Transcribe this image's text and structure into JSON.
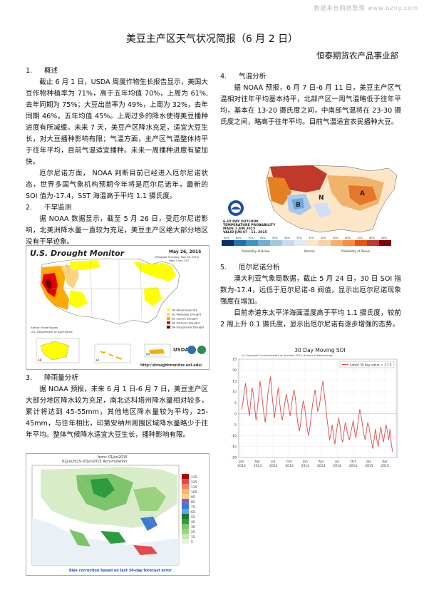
{
  "watermark": "数据来自网络整理 www.nzny.com",
  "title": "美豆主产区天气状况简报（6 月 2 日）",
  "org": "恒泰期货农产品事业部",
  "sections": {
    "s1": {
      "num": "1.",
      "heading": "概述",
      "p1": "截止 6 月 1 日，USDA 周度作物生长报告显示，美国大豆作物种植率为 71%，高于五年均值 70%，上周为 61%,去年同期为 75%；大豆出苗率为 49%，上周为 32%，去年同期 46%，五年均值 45%。上周过多的降水使得美豆播种进度有所减缓。未来 7 天，美豆产区降水充足，适宜大豆生长，对大豆播种影响有限；气温方面，主产区气温整体持平于往年平均，目前气温适宜播种。未来一周播种进度有望加快。",
      "p2": "厄尔尼诺方面， NOAA 判断目前已经进入厄尔尼诺状态，世界多国气象机构预期今年将是厄尔尼诺年，最新的 SOI 值为-17.4，SST 海温高于平均 1.1 摄氏度。"
    },
    "s2": {
      "num": "2.",
      "heading": "干旱监测",
      "p1": "据 NOAA 数据显示，截至 5 月 26 日，受厄尔尼诺影响，北美洲降水量一直较为充足，美豆主产区绝大部分地区没有干旱迹象。"
    },
    "s3": {
      "num": "3.",
      "heading": "降雨量分析",
      "p1": "据 NOAA 预报，未来 6 月 1 日-6 月 7 日，美豆主产区大部分地区降水较为充足，南北达科塔州降水量相对较多，累计将达到 45-55mm，其他地区降水量较为平均，25-45mm，与往年相比，印第安纳州周围区域降水量略少于往年平均。整体气候降水适宜大豆生长，播种影响有限。"
    },
    "s4": {
      "num": "4.",
      "heading": "气温分析",
      "p1": "据 NOAA 预报，6 月 7 日-6 月 11 日，美豆主产区气温相对往年平均基本持平，北部产区一周气温略低于往年平均，基本在 13-20 摄氏度之间，中南部气温将在 23-30 摄氏度之间，略高于往年平均。目前气温适宜农民播种大豆。"
    },
    "s5": {
      "num": "5.",
      "heading": "厄尔尼诺分析",
      "p1": "澳大利亚气象局数据，截止 5 月 24 日，30 日 SOI 指数为-17.4，远低于厄尔尼诺-8 阀值，显示出厄尔尼诺现象强度在增加。",
      "p2": "目前赤道东太平洋海面温度高于平均 1.1 摄氏度，较前 2 周上升 0.1 摄氏度，显示出厄尔尼诺有逐步增强的态势。"
    }
  },
  "drought_map": {
    "title": "U.S. Drought Monitor",
    "date": "May 26, 2015",
    "valid": "(Released Thursday, May 28, 2015)",
    "valid2": "Valid 7 a.m. EST",
    "legend": [
      "D0 Abnormally Dry",
      "D1 Moderate Drought",
      "D2 Severe Drought",
      "D3 Extreme Drought",
      "D4 Exceptional Drought"
    ],
    "legend_colors": [
      "#ffff00",
      "#fcd37f",
      "#ffaa00",
      "#e60000",
      "#730000"
    ],
    "author": "Author: Brad Rippey",
    "agency": "U.S. Department of Agriculture",
    "url": "http://droughtmonitor.unl.edu/",
    "labels": {
      "ak": "AK",
      "hi": "HI",
      "pr": "PR"
    }
  },
  "temp_map": {
    "header": [
      "6-10 DAY OUTLOOK",
      "TEMPERATURE PROBABILITY",
      "MADE 1 JUN 2015",
      "VALID JUN 07 - 11, 2015"
    ],
    "scale": [
      "90%",
      "80%",
      "70%",
      "60%",
      "50%",
      "40%",
      "33%",
      "33%",
      "40%",
      "50%",
      "60%",
      "70%",
      "80%",
      "90%"
    ],
    "below_label": "Probability of Below",
    "normal_label": "Normal",
    "above_label": "Probability of Above",
    "labels": {
      "B": "B",
      "N": "N",
      "A": "A"
    }
  },
  "rain_map": {
    "caption": "from: 01Jun2015",
    "subtitle": "01Jun2015-07Jun2015 Accumulation",
    "scale": [
      "135",
      "125",
      "115",
      "105",
      "95",
      "85",
      "75",
      "65",
      "55",
      "45",
      "35",
      "25",
      "15",
      "5"
    ],
    "footer": "Bias correction based on last 30-day forecast error"
  },
  "soi_chart": {
    "title": "30 Day Moving SOI",
    "copyright": "(c) Copyright Commonwealth of Australia 2015, Bureau of Meteorology",
    "legend": "Latest 30 day value = -17.4"
  },
  "chart_data": {
    "type": "line",
    "title": "30 Day Moving SOI",
    "xlabel": "",
    "ylabel": "",
    "ylim": [
      -20,
      25
    ],
    "yticks": [
      25,
      20,
      15,
      10,
      5,
      0,
      -5,
      -10,
      -15,
      -20
    ],
    "xticks": [
      "Jan 2013",
      "Apr 2013",
      "Jul 2013",
      "Oct 2013",
      "Jan 2014",
      "Apr 2014",
      "Jul 2014",
      "Oct 2014",
      "Jan 2015",
      "Apr 2015"
    ],
    "grid": true,
    "legend_placement": "top-right",
    "series": [
      {
        "name": "Latest 30 day value = -17.4",
        "color": "#e34a4a",
        "values": [
          2,
          5,
          10,
          14,
          8,
          3,
          -1,
          6,
          12,
          9,
          3,
          -3,
          2,
          8,
          15,
          11,
          5,
          0,
          -4,
          2,
          9,
          13,
          17,
          10,
          4,
          -2,
          3,
          8,
          12,
          5,
          0,
          -3,
          1,
          5,
          9,
          6,
          2,
          -1,
          4,
          8,
          11,
          7,
          0,
          -5,
          -8,
          -4,
          2,
          6,
          3,
          -2,
          -7,
          -10,
          -6,
          -1,
          4,
          8,
          11,
          6,
          1,
          3,
          7,
          12,
          15,
          9,
          4,
          -2,
          -7,
          -12,
          -9,
          -5,
          -10,
          -14,
          -9,
          -5,
          -2,
          -6,
          -11,
          -13,
          -8,
          -4,
          -7,
          -10,
          -12,
          -9,
          -6,
          -3,
          -8,
          -11,
          -7,
          -2,
          2,
          -1,
          -5,
          -9,
          -12,
          -8,
          -4,
          -6,
          -10,
          -13,
          -16,
          -11,
          -7,
          -12,
          -15,
          -10,
          -6,
          -10,
          -13,
          -9,
          -5,
          -8,
          -12,
          -7,
          -14,
          -17.4
        ]
      }
    ]
  }
}
